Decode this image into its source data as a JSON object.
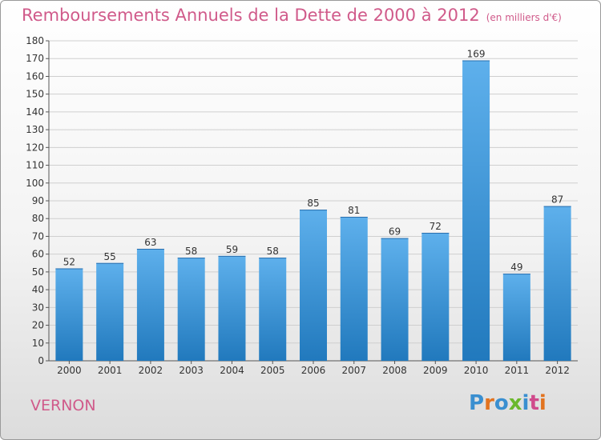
{
  "title": "Remboursements Annuels de la Dette de 2000 à 2012",
  "unit_note": "(en milliers d'€)",
  "place": "VERNON",
  "logo": {
    "text": "Proxiti",
    "colors": [
      "#3a8fd0",
      "#e2731f",
      "#3a8fd0",
      "#6bb82c",
      "#3a8fd0",
      "#d04a8c",
      "#e2731f"
    ]
  },
  "colors": {
    "bar_light": "#5eb0ec",
    "bar_dark": "#2179bd",
    "title": "#d05a8a",
    "grid": "#cfcfcf"
  },
  "chart_data": {
    "type": "bar",
    "categories": [
      "2000",
      "2001",
      "2002",
      "2003",
      "2004",
      "2005",
      "2006",
      "2007",
      "2008",
      "2009",
      "2010",
      "2011",
      "2012"
    ],
    "values": [
      52,
      55,
      63,
      58,
      59,
      58,
      85,
      81,
      69,
      72,
      169,
      49,
      87
    ],
    "ylim": [
      0,
      180
    ],
    "ytick_step": 10,
    "grid": true,
    "title": "Remboursements Annuels de la Dette de 2000 à 2012",
    "xlabel": "",
    "ylabel": ""
  }
}
